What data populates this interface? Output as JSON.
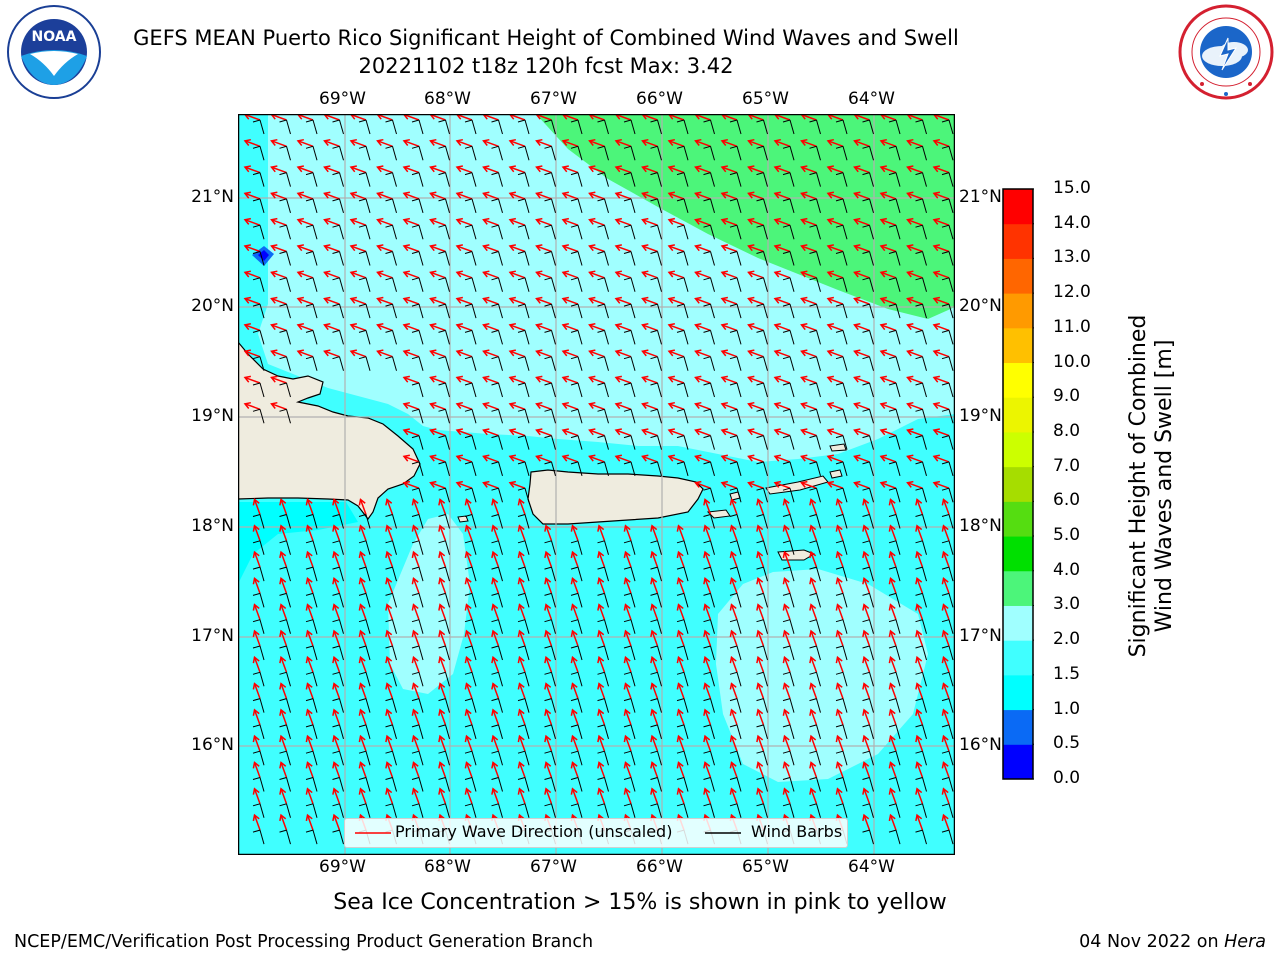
{
  "header": {
    "title_line1": "GEFS MEAN Puerto Rico Significant Height of Combined Wind Waves and Swell",
    "title_line2": "20221102 t18z 120h fcst   Max: 3.42"
  },
  "logos": {
    "left": {
      "name": "noaa-logo",
      "text": "NOAA"
    },
    "right": {
      "name": "national-weather-service-logo"
    }
  },
  "map": {
    "lon_labels": [
      "69°W",
      "68°W",
      "67°W",
      "66°W",
      "65°W",
      "64°W"
    ],
    "lat_labels": [
      "21°N",
      "20°N",
      "19°N",
      "18°N",
      "17°N",
      "16°N"
    ],
    "colors": {
      "land": "#efecdf",
      "coast": "#000000",
      "grid": "#b0b0b0",
      "arrow": "#ff0000",
      "barb": "#000000"
    },
    "legend": {
      "wave_label": "Primary Wave Direction (unscaled)",
      "barb_label": "Wind Barbs"
    }
  },
  "colorbar": {
    "title_line1": "Significant Height of Combined",
    "title_line2": "Wind Waves and Swell [m]",
    "levels": [
      "0.0",
      "0.5",
      "1.0",
      "1.5",
      "2.0",
      "3.0",
      "4.0",
      "5.0",
      "6.0",
      "7.0",
      "8.0",
      "9.0",
      "10.0",
      "11.0",
      "12.0",
      "13.0",
      "14.0",
      "15.0"
    ],
    "colors": [
      "#0000ff",
      "#0a6af5",
      "#00ffff",
      "#40ffff",
      "#a0ffff",
      "#4cf57a",
      "#00e000",
      "#55dd11",
      "#a6dd00",
      "#ccff00",
      "#ecf500",
      "#ffff00",
      "#ffc000",
      "#ff9a00",
      "#ff6600",
      "#ff3300",
      "#ff0000"
    ]
  },
  "footer": {
    "sea_ice_note": "Sea Ice Concentration > 15% is shown in pink to yellow",
    "left": "NCEP/EMC/Verification Post Processing Product Generation Branch",
    "right_date": "04 Nov 2022 on ",
    "right_host": "Hera"
  }
}
